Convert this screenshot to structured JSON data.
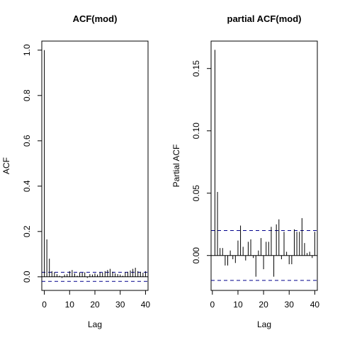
{
  "chart_data": [
    {
      "type": "bar",
      "title": "ACF(mod)",
      "xlabel": "Lag",
      "ylabel": "ACF",
      "xlim": [
        -1,
        41
      ],
      "ylim": [
        -0.06,
        1.04
      ],
      "xticks": [
        0,
        10,
        20,
        30,
        40
      ],
      "yticks": [
        0.0,
        0.2,
        0.4,
        0.6,
        0.8,
        1.0
      ],
      "ytick_labels": [
        "0.0",
        "0.2",
        "0.4",
        "0.6",
        "0.8",
        "1.0"
      ],
      "conf_band": [
        0.02,
        -0.02
      ],
      "lags": [
        0,
        1,
        2,
        3,
        4,
        5,
        6,
        7,
        8,
        9,
        10,
        11,
        12,
        13,
        14,
        15,
        16,
        17,
        18,
        19,
        20,
        21,
        22,
        23,
        24,
        25,
        26,
        27,
        28,
        29,
        30,
        31,
        32,
        33,
        34,
        35,
        36,
        37,
        38,
        39,
        40
      ],
      "values": [
        1.0,
        0.165,
        0.08,
        0.025,
        0.02,
        0.012,
        0.005,
        -0.005,
        0.01,
        0.012,
        0.025,
        0.03,
        0.015,
        0.005,
        0.02,
        0.018,
        0.02,
        -0.005,
        0.012,
        0.01,
        0.015,
        0.01,
        0.02,
        0.018,
        0.025,
        0.03,
        0.035,
        0.022,
        0.015,
        0.012,
        0.01,
        0.005,
        0.02,
        0.022,
        0.028,
        0.035,
        0.04,
        0.025,
        0.022,
        0.018,
        0.025
      ],
      "line_color": "#000000",
      "band_color": "#00008b"
    },
    {
      "type": "bar",
      "title": "partial ACF(mod)",
      "xlabel": "Lag",
      "ylabel": "Partial ACF",
      "xlim": [
        -0.5,
        41
      ],
      "ylim": [
        -0.028,
        0.172
      ],
      "xticks": [
        0,
        10,
        20,
        30,
        40
      ],
      "yticks": [
        0.0,
        0.05,
        0.1,
        0.15
      ],
      "ytick_labels": [
        "0.00",
        "0.05",
        "0.10",
        "0.15"
      ],
      "conf_band": [
        0.02,
        -0.02
      ],
      "lags": [
        1,
        2,
        3,
        4,
        5,
        6,
        7,
        8,
        9,
        10,
        11,
        12,
        13,
        14,
        15,
        16,
        17,
        18,
        19,
        20,
        21,
        22,
        23,
        24,
        25,
        26,
        27,
        28,
        29,
        30,
        31,
        32,
        33,
        34,
        35,
        36,
        37,
        38,
        39,
        40
      ],
      "values": [
        0.165,
        0.051,
        0.006,
        0.006,
        -0.008,
        -0.008,
        0.004,
        -0.003,
        -0.006,
        0.012,
        0.024,
        0.007,
        -0.004,
        0.011,
        0.013,
        -0.002,
        -0.017,
        0.004,
        0.014,
        -0.011,
        0.011,
        0.011,
        0.023,
        -0.017,
        0.025,
        0.029,
        -0.003,
        0.019,
        0.003,
        -0.007,
        -0.007,
        0.021,
        0.019,
        0.019,
        0.03,
        0.01,
        0.002,
        0.003,
        -0.002,
        0.019
      ],
      "line_color": "#000000",
      "band_color": "#00008b"
    }
  ]
}
